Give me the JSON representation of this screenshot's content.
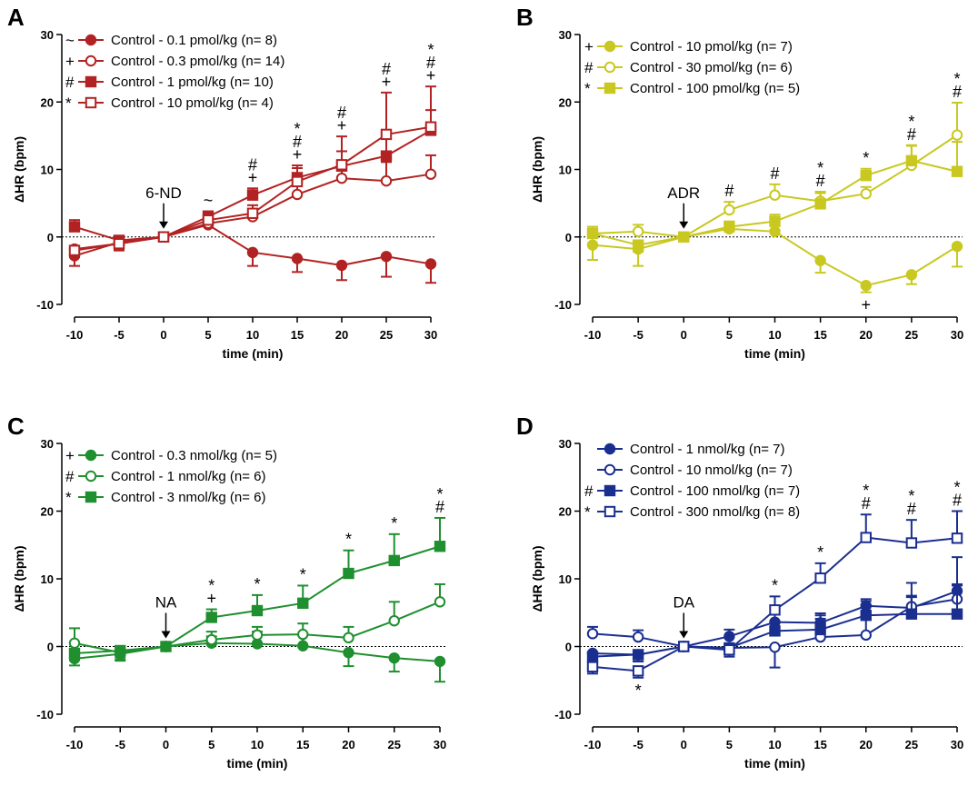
{
  "figure": {
    "x_categories": [
      -10,
      -5,
      0,
      5,
      10,
      15,
      20,
      25,
      30
    ]
  },
  "chart_data": [
    {
      "panel": "A",
      "type": "line",
      "color": "#b22222",
      "xlabel": "time (min)",
      "ylabel": "ΔHR (bpm)",
      "ylim": [
        -10,
        30
      ],
      "yticks": [
        "30",
        "20",
        "10",
        "0",
        "-10"
      ],
      "xticks": [
        "-10",
        "-5",
        "0",
        "5",
        "10",
        "15",
        "20",
        "25",
        "30"
      ],
      "x": [
        -10,
        -5,
        0,
        5,
        10,
        15,
        20,
        25,
        30
      ],
      "arrow": {
        "label": "6-ND",
        "x": 0
      },
      "series": [
        {
          "name": "Control - 0.1 pmol/kg (n= 8)",
          "symbol": "~",
          "marker": "circle",
          "filled": true,
          "values": [
            -2.8,
            -0.8,
            0,
            1.8,
            -2.3,
            -3.2,
            -4.2,
            -2.9,
            -4.0
          ],
          "err": [
            1.5,
            1.0,
            0,
            1.0,
            2.0,
            2.0,
            2.2,
            3.0,
            2.8
          ]
        },
        {
          "name": "Control - 0.3 pmol/kg (n= 14)",
          "symbol": "+",
          "marker": "circle",
          "filled": false,
          "values": [
            -1.8,
            -1.0,
            0,
            2.0,
            3.0,
            6.3,
            8.7,
            8.3,
            9.3
          ],
          "err": [
            1.0,
            1.0,
            0,
            0.8,
            1.0,
            1.8,
            2.5,
            2.8,
            2.8
          ]
        },
        {
          "name": "Control - 1 pmol/kg (n= 10)",
          "symbol": "#",
          "marker": "square",
          "filled": true,
          "values": [
            1.5,
            -0.5,
            0,
            3.0,
            6.2,
            8.8,
            10.5,
            12.0,
            15.8
          ],
          "err": [
            1.0,
            1.0,
            0,
            0.8,
            1.0,
            1.8,
            2.2,
            2.8,
            3.0
          ]
        },
        {
          "name": "Control - 10 pmol/kg (n= 4)",
          "symbol": "*",
          "marker": "square",
          "filled": false,
          "values": [
            -2.0,
            -1.0,
            0,
            2.5,
            3.5,
            8.2,
            10.7,
            15.2,
            16.3
          ],
          "err": [
            1.0,
            1.0,
            0,
            0.8,
            1.2,
            2.0,
            4.2,
            6.2,
            6.0
          ]
        }
      ],
      "annotations": [
        {
          "x": 5,
          "marks": [
            "~"
          ]
        },
        {
          "x": 10,
          "marks": [
            "#",
            "+"
          ]
        },
        {
          "x": 15,
          "marks": [
            "*",
            "#",
            "+"
          ]
        },
        {
          "x": 20,
          "marks": [
            "#",
            "+"
          ]
        },
        {
          "x": 25,
          "marks": [
            "#",
            "+"
          ]
        },
        {
          "x": 30,
          "marks": [
            "*",
            "#",
            "+"
          ]
        }
      ]
    },
    {
      "panel": "B",
      "type": "line",
      "color": "#c8c820",
      "xlabel": "time (min)",
      "ylabel": "ΔHR (bpm)",
      "ylim": [
        -10,
        30
      ],
      "yticks": [
        "30",
        "20",
        "10",
        "0",
        "-10"
      ],
      "xticks": [
        "-10",
        "-5",
        "0",
        "5",
        "10",
        "15",
        "20",
        "25",
        "30"
      ],
      "x": [
        -10,
        -5,
        0,
        5,
        10,
        15,
        20,
        25,
        30
      ],
      "arrow": {
        "label": "ADR",
        "x": 0
      },
      "series": [
        {
          "name": "Control - 10 pmol/kg (n= 7)",
          "symbol": "+",
          "marker": "circle",
          "filled": true,
          "values": [
            -1.2,
            -1.8,
            0,
            1.2,
            0.8,
            -3.5,
            -7.2,
            -5.6,
            -1.4
          ],
          "err": [
            2.2,
            2.5,
            0,
            0.8,
            2.0,
            1.8,
            1.0,
            1.4,
            3.0
          ]
        },
        {
          "name": "Control - 30 pmol/kg (n= 6)",
          "symbol": "#",
          "marker": "circle",
          "filled": false,
          "values": [
            0.5,
            0.8,
            0,
            4.0,
            6.2,
            5.3,
            6.4,
            10.6,
            15.1
          ],
          "err": [
            1.0,
            1.0,
            0,
            1.2,
            1.6,
            1.4,
            1.0,
            3.0,
            4.8
          ]
        },
        {
          "name": "Control - 100 pmol/kg (n= 5)",
          "symbol": "*",
          "marker": "square",
          "filled": true,
          "values": [
            0.5,
            -1.2,
            0,
            1.5,
            2.3,
            4.9,
            9.1,
            11.3,
            9.7
          ],
          "err": [
            1.0,
            1.0,
            0,
            0.8,
            1.0,
            1.6,
            1.0,
            2.2,
            4.4
          ]
        }
      ],
      "annotations": [
        {
          "x": 5,
          "marks": [
            "#"
          ]
        },
        {
          "x": 10,
          "marks": [
            "#"
          ]
        },
        {
          "x": 15,
          "marks": [
            "*",
            "#"
          ]
        },
        {
          "x": 20,
          "marks": [
            "*"
          ]
        },
        {
          "x": 25,
          "marks": [
            "*",
            "#"
          ]
        },
        {
          "x": 30,
          "marks": [
            "*",
            "#"
          ]
        }
      ],
      "below_annotations": [
        {
          "x": 20,
          "marks": [
            "+"
          ]
        }
      ]
    },
    {
      "panel": "C",
      "type": "line",
      "color": "#1f8f2f",
      "xlabel": "time (min)",
      "ylabel": "ΔHR (bpm)",
      "ylim": [
        -10,
        30
      ],
      "yticks": [
        "30",
        "20",
        "10",
        "0",
        "-10"
      ],
      "xticks": [
        "-10",
        "-5",
        "0",
        "5",
        "10",
        "15",
        "20",
        "25",
        "30"
      ],
      "x": [
        -10,
        -5,
        0,
        5,
        10,
        15,
        20,
        25,
        30
      ],
      "arrow": {
        "label": "NA",
        "x": 0
      },
      "series": [
        {
          "name": "Control - 0.3 nmol/kg (n= 5)",
          "symbol": "+",
          "marker": "circle",
          "filled": true,
          "values": [
            -1.8,
            -1.1,
            0,
            0.5,
            0.4,
            0.1,
            -0.9,
            -1.7,
            -2.2
          ],
          "err": [
            1.0,
            1.0,
            0,
            1.0,
            1.8,
            1.6,
            2.0,
            2.0,
            3.0
          ]
        },
        {
          "name": "Control - 1 nmol/kg (n= 6)",
          "symbol": "#",
          "marker": "circle",
          "filled": false,
          "values": [
            0.5,
            -0.9,
            0,
            1.0,
            1.7,
            1.8,
            1.3,
            3.8,
            6.6
          ],
          "err": [
            2.2,
            1.0,
            0,
            1.2,
            1.2,
            1.6,
            1.6,
            2.8,
            2.6
          ]
        },
        {
          "name": "Control - 3 nmol/kg (n= 6)",
          "symbol": "*",
          "marker": "square",
          "filled": true,
          "values": [
            -1.0,
            -0.6,
            0,
            4.3,
            5.3,
            6.4,
            10.8,
            12.7,
            14.8
          ],
          "err": [
            1.0,
            1.0,
            0,
            1.2,
            2.3,
            2.6,
            3.4,
            3.9,
            4.2
          ]
        }
      ],
      "annotations": [
        {
          "x": 5,
          "marks": [
            "*",
            "+"
          ]
        },
        {
          "x": 10,
          "marks": [
            "*"
          ]
        },
        {
          "x": 15,
          "marks": [
            "*"
          ]
        },
        {
          "x": 20,
          "marks": [
            "*"
          ]
        },
        {
          "x": 25,
          "marks": [
            "*"
          ]
        },
        {
          "x": 30,
          "marks": [
            "*",
            "#"
          ]
        }
      ]
    },
    {
      "panel": "D",
      "type": "line",
      "color": "#1a2e8f",
      "xlabel": "time (min)",
      "ylabel": "ΔHR (bpm)",
      "ylim": [
        -10,
        30
      ],
      "yticks": [
        "30",
        "20",
        "10",
        "0",
        "-10"
      ],
      "xticks": [
        "-10",
        "-5",
        "0",
        "5",
        "10",
        "15",
        "20",
        "25",
        "30"
      ],
      "x": [
        -10,
        -5,
        0,
        5,
        10,
        15,
        20,
        25,
        30
      ],
      "arrow": {
        "label": "DA",
        "x": 0
      },
      "series": [
        {
          "name": "Control - 1 nmol/kg (n= 7)",
          "symbol": "",
          "marker": "circle",
          "filled": true,
          "values": [
            -1.0,
            -1.2,
            0,
            1.5,
            3.6,
            3.5,
            6.0,
            5.7,
            8.2
          ],
          "err": [
            1.0,
            1.0,
            0,
            1.0,
            1.2,
            1.4,
            1.0,
            1.6,
            1.0
          ]
        },
        {
          "name": "Control - 10 nmol/kg (n= 7)",
          "symbol": "",
          "marker": "circle",
          "filled": false,
          "values": [
            1.9,
            1.4,
            0,
            -0.2,
            -0.1,
            1.4,
            1.7,
            5.9,
            7.0
          ],
          "err": [
            1.0,
            1.0,
            0,
            1.0,
            3.0,
            3.2,
            5.0,
            1.6,
            6.2
          ]
        },
        {
          "name": "Control - 100 nmol/kg (n= 7)",
          "symbol": "#",
          "marker": "square",
          "filled": true,
          "values": [
            -1.5,
            -1.2,
            0,
            -0.2,
            2.3,
            2.5,
            4.6,
            4.8,
            4.8
          ],
          "err": [
            1.0,
            1.0,
            0,
            1.0,
            1.4,
            1.6,
            1.6,
            4.6,
            4.2
          ]
        },
        {
          "name": "Control - 300 nmol/kg (n= 8)",
          "symbol": "*",
          "marker": "square",
          "filled": false,
          "values": [
            -3.0,
            -3.6,
            0,
            -0.5,
            5.4,
            10.1,
            16.1,
            15.3,
            16.0
          ],
          "err": [
            1.0,
            1.0,
            0,
            1.0,
            2.0,
            2.2,
            3.4,
            3.4,
            4.0
          ]
        }
      ],
      "annotations": [
        {
          "x": 10,
          "marks": [
            "*"
          ]
        },
        {
          "x": 15,
          "marks": [
            "*"
          ]
        },
        {
          "x": 20,
          "marks": [
            "*",
            "#"
          ]
        },
        {
          "x": 25,
          "marks": [
            "*",
            "#"
          ]
        },
        {
          "x": 30,
          "marks": [
            "*",
            "#"
          ]
        }
      ],
      "below_annotations": [
        {
          "x": -5,
          "marks": [
            "*"
          ]
        }
      ]
    }
  ]
}
